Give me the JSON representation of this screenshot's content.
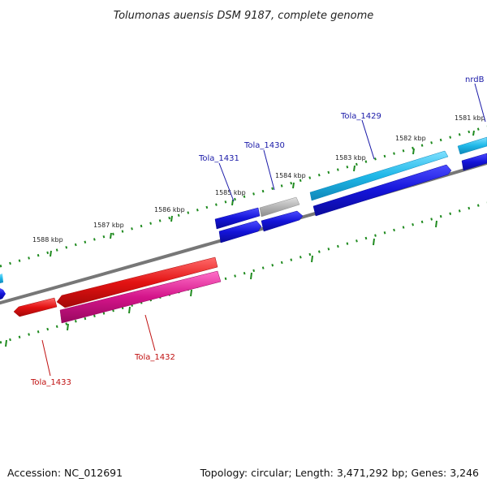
{
  "title": "Tolumonas auensis DSM 9187, complete genome",
  "footer": {
    "accession": "Accession: NC_012691",
    "topology": "Topology: circular; Length: 3,471,292 bp; Genes: 3,246"
  },
  "colors": {
    "background": "#ffffff",
    "backbone": "#777777",
    "ruler_ticks": "#1e8a1e",
    "forward_cds": "#1fb8e8",
    "forward_gene": "#1414d9",
    "reverse_cds": "#e31212",
    "reverse_gene_alt": "#d4148a",
    "pseudo_grey": "#b4b4b4",
    "label_forward": "#1a1aa8",
    "label_reverse": "#c01010"
  },
  "kbp_ticks": [
    {
      "label": "1581 kbp"
    },
    {
      "label": "1582 kbp"
    },
    {
      "label": "1583 kbp"
    },
    {
      "label": "1584 kbp"
    },
    {
      "label": "1585 kbp"
    },
    {
      "label": "1586 kbp"
    },
    {
      "label": "1587 kbp"
    },
    {
      "label": "1588 kbp"
    }
  ],
  "genes": [
    {
      "label": "nrdB",
      "strand": "forward"
    },
    {
      "label": "Tola_1429",
      "strand": "forward"
    },
    {
      "label": "Tola_1430",
      "strand": "forward"
    },
    {
      "label": "Tola_1431",
      "strand": "forward"
    },
    {
      "label": "Tola_1432",
      "strand": "reverse"
    },
    {
      "label": "Tola_1433",
      "strand": "reverse"
    }
  ]
}
